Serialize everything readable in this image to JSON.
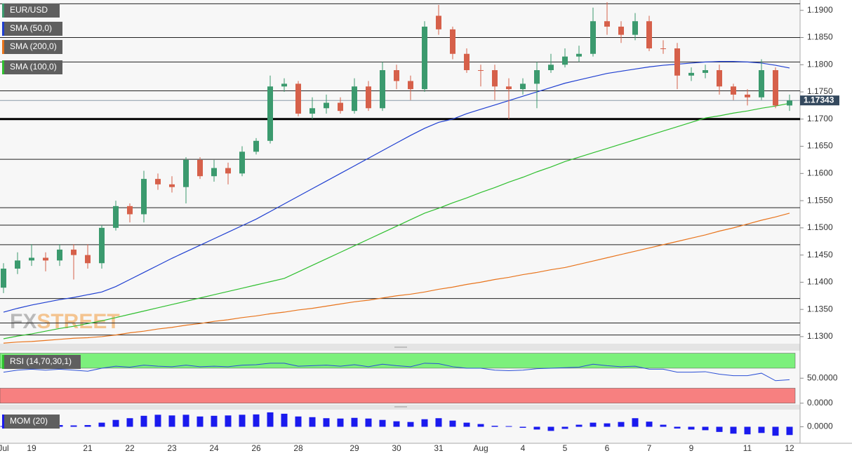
{
  "chart_data": [
    {
      "type": "candlestick",
      "title": "EUR/USD",
      "categories": [
        "Jul",
        null,
        "19",
        null,
        null,
        null,
        "21",
        null,
        null,
        "22",
        null,
        null,
        "23",
        null,
        null,
        "24",
        null,
        null,
        "26",
        null,
        null,
        "28",
        null,
        null,
        null,
        "29",
        null,
        null,
        "30",
        null,
        null,
        "31",
        null,
        null,
        "Aug",
        null,
        null,
        "4",
        null,
        null,
        "5",
        null,
        null,
        "6",
        null,
        null,
        "7",
        null,
        null,
        "9",
        null,
        null,
        null,
        "11",
        null,
        null,
        "12"
      ],
      "open": [
        1.139,
        1.1425,
        1.144,
        1.1445,
        1.144,
        1.146,
        1.145,
        1.1435,
        1.15,
        1.154,
        1.1525,
        1.159,
        1.158,
        1.1575,
        1.1625,
        1.1595,
        1.161,
        1.16,
        1.164,
        1.166,
        1.176,
        1.1765,
        1.171,
        1.172,
        1.173,
        1.1715,
        1.176,
        1.172,
        1.179,
        1.177,
        1.1755,
        1.189,
        1.1865,
        1.182,
        1.179,
        1.179,
        1.176,
        1.1755,
        1.1765,
        1.179,
        1.18,
        1.1815,
        1.182,
        1.188,
        1.187,
        1.1855,
        1.188,
        1.183,
        1.183,
        1.178,
        1.1785,
        1.179,
        1.176,
        1.1745,
        1.174,
        1.179,
        1.1725
      ],
      "high": [
        1.1435,
        1.1455,
        1.147,
        1.1455,
        1.147,
        1.147,
        1.147,
        1.1505,
        1.155,
        1.1545,
        1.1605,
        1.16,
        1.1595,
        1.163,
        1.163,
        1.1625,
        1.162,
        1.165,
        1.1665,
        1.178,
        1.1775,
        1.177,
        1.174,
        1.1745,
        1.174,
        1.1775,
        1.177,
        1.1805,
        1.18,
        1.178,
        1.188,
        1.191,
        1.187,
        1.183,
        1.18,
        1.18,
        1.1775,
        1.1775,
        1.1805,
        1.182,
        1.183,
        1.1835,
        1.1905,
        1.1915,
        1.188,
        1.1895,
        1.189,
        1.1845,
        1.184,
        1.1795,
        1.18,
        1.18,
        1.1765,
        1.1755,
        1.181,
        1.1795,
        1.1745
      ],
      "low": [
        1.138,
        1.1415,
        1.143,
        1.142,
        1.143,
        1.1405,
        1.1425,
        1.1425,
        1.1495,
        1.151,
        1.151,
        1.157,
        1.1565,
        1.1545,
        1.159,
        1.1585,
        1.158,
        1.1595,
        1.1635,
        1.1655,
        1.175,
        1.1705,
        1.17,
        1.171,
        1.171,
        1.171,
        1.1715,
        1.1715,
        1.1755,
        1.1735,
        1.175,
        1.1855,
        1.181,
        1.1785,
        1.176,
        1.1735,
        1.17,
        1.1745,
        1.172,
        1.1785,
        1.1795,
        1.1805,
        1.1815,
        1.1855,
        1.184,
        1.1845,
        1.1825,
        1.182,
        1.1755,
        1.177,
        1.1775,
        1.1745,
        1.1735,
        1.1725,
        1.1735,
        1.172,
        1.1715
      ],
      "close": [
        1.1425,
        1.144,
        1.1445,
        1.144,
        1.146,
        1.145,
        1.1435,
        1.15,
        1.154,
        1.1525,
        1.159,
        1.158,
        1.1575,
        1.1625,
        1.1595,
        1.161,
        1.16,
        1.164,
        1.166,
        1.176,
        1.1765,
        1.171,
        1.172,
        1.173,
        1.1715,
        1.176,
        1.172,
        1.179,
        1.177,
        1.1755,
        1.187,
        1.1865,
        1.182,
        1.179,
        1.179,
        1.176,
        1.1755,
        1.1765,
        1.179,
        1.18,
        1.1815,
        1.182,
        1.188,
        1.187,
        1.1855,
        1.188,
        1.183,
        1.183,
        1.178,
        1.1785,
        1.179,
        1.176,
        1.1745,
        1.174,
        1.179,
        1.1725,
        1.17343
      ],
      "up_color": "#3b9a6e",
      "down_color": "#d6604a",
      "series": [
        {
          "name": "SMA (50,0)",
          "color": "#1f3fd1",
          "values": [
            1.1345,
            1.1352,
            1.1358,
            1.1363,
            1.1368,
            1.1372,
            1.1377,
            1.1382,
            1.1392,
            1.1405,
            1.1418,
            1.1431,
            1.1444,
            1.1456,
            1.1468,
            1.148,
            1.1492,
            1.1504,
            1.1516,
            1.153,
            1.1544,
            1.1558,
            1.1572,
            1.1586,
            1.16,
            1.1614,
            1.1628,
            1.1642,
            1.1656,
            1.167,
            1.1683,
            1.1694,
            1.17,
            1.171,
            1.1718,
            1.1726,
            1.1734,
            1.1742,
            1.175,
            1.1758,
            1.1766,
            1.1772,
            1.1778,
            1.1784,
            1.1788,
            1.1792,
            1.1796,
            1.1799,
            1.1801,
            1.1803,
            1.1805,
            1.1806,
            1.1806,
            1.1805,
            1.1803,
            1.1799,
            1.1794
          ]
        },
        {
          "name": "SMA (200,0)",
          "color": "#e8741c",
          "values": [
            1.1288,
            1.129,
            1.1291,
            1.1293,
            1.1295,
            1.1297,
            1.1298,
            1.13,
            1.1303,
            1.1307,
            1.131,
            1.1314,
            1.1317,
            1.1321,
            1.1324,
            1.1328,
            1.1331,
            1.1335,
            1.1338,
            1.1342,
            1.1345,
            1.1349,
            1.1352,
            1.1356,
            1.136,
            1.1364,
            1.1367,
            1.1371,
            1.1375,
            1.1378,
            1.1382,
            1.1387,
            1.1391,
            1.1396,
            1.14,
            1.1405,
            1.1409,
            1.1414,
            1.1418,
            1.1423,
            1.1427,
            1.1433,
            1.1439,
            1.1445,
            1.1451,
            1.1457,
            1.1463,
            1.1469,
            1.1475,
            1.1481,
            1.1487,
            1.1494,
            1.15,
            1.1507,
            1.1514,
            1.152,
            1.1527
          ]
        },
        {
          "name": "SMA (100,0)",
          "color": "#2fbf2f",
          "values": [
            1.1296,
            1.1301,
            1.1305,
            1.131,
            1.1315,
            1.1319,
            1.1324,
            1.1329,
            1.1335,
            1.1341,
            1.1347,
            1.1353,
            1.1359,
            1.1365,
            1.1371,
            1.1377,
            1.1383,
            1.1389,
            1.1395,
            1.1401,
            1.1407,
            1.1419,
            1.1431,
            1.1443,
            1.1455,
            1.1467,
            1.1479,
            1.1491,
            1.1503,
            1.1515,
            1.1527,
            1.1536,
            1.1546,
            1.1555,
            1.1565,
            1.1574,
            1.1584,
            1.1593,
            1.1603,
            1.1612,
            1.1622,
            1.163,
            1.1638,
            1.1646,
            1.1654,
            1.1662,
            1.167,
            1.1678,
            1.1686,
            1.1694,
            1.1702,
            1.1706,
            1.1711,
            1.1715,
            1.172,
            1.1724,
            1.1729
          ]
        }
      ],
      "ylim": [
        1.1287,
        1.1919
      ],
      "yticks": [
        {
          "value": 1.13,
          "label": "1.1300"
        },
        {
          "value": 1.135,
          "label": "1.1350"
        },
        {
          "value": 1.14,
          "label": "1.1400"
        },
        {
          "value": 1.145,
          "label": "1.1450"
        },
        {
          "value": 1.15,
          "label": "1.1500"
        },
        {
          "value": 1.155,
          "label": "1.1550"
        },
        {
          "value": 1.16,
          "label": "1.1600"
        },
        {
          "value": 1.165,
          "label": "1.1650"
        },
        {
          "value": 1.17,
          "label": "1.1700"
        },
        {
          "value": 1.175,
          "label": "1.1750"
        },
        {
          "value": 1.18,
          "label": "1.1800"
        },
        {
          "value": 1.185,
          "label": "1.1850"
        },
        {
          "value": 1.19,
          "label": "1.1900"
        }
      ],
      "levels": [
        1.1912,
        1.185,
        1.1805,
        1.1752,
        1.1626,
        1.1537,
        1.1505,
        1.1469,
        1.137,
        1.1325,
        1.1303
      ],
      "key_level": 1.17,
      "last_price": 1.17343,
      "watermark": [
        "FX",
        "STREET"
      ]
    },
    {
      "type": "line",
      "title": "RSI (14,70,30,1)",
      "color": "#2b4fd6",
      "values": [
        62,
        66,
        68,
        66,
        68,
        66,
        64,
        70,
        74,
        72,
        76,
        74,
        73,
        76,
        73,
        74,
        73,
        76,
        77,
        80,
        80,
        74,
        75,
        76,
        74,
        77,
        73,
        78,
        75,
        73,
        80,
        79,
        73,
        70,
        70,
        66,
        65,
        66,
        69,
        70,
        71,
        72,
        78,
        75,
        73,
        74,
        68,
        68,
        62,
        62,
        63,
        58,
        55,
        55,
        60,
        45,
        47
      ],
      "ylim": [
        -3,
        105
      ],
      "bands": [
        {
          "range": [
            70,
            100
          ],
          "color": "#7cf07c"
        },
        {
          "range": [
            0,
            30
          ],
          "color": "#f78080"
        }
      ],
      "yticks": [
        {
          "value": 50,
          "label": "50.0000"
        },
        {
          "value": 0,
          "label": "0.0000"
        }
      ]
    },
    {
      "type": "bar",
      "title": "MOM (20)",
      "color": "#1a1aee",
      "values": [
        0.0002,
        0.0003,
        0.0004,
        0.0006,
        0.0005,
        0.0004,
        0.0005,
        0.0012,
        0.002,
        0.0025,
        0.0032,
        0.0035,
        0.0033,
        0.0035,
        0.003,
        0.0032,
        0.0033,
        0.0035,
        0.0036,
        0.0042,
        0.0038,
        0.003,
        0.0028,
        0.0025,
        0.0024,
        0.0026,
        0.0024,
        0.002,
        0.0016,
        0.0014,
        0.0022,
        0.0025,
        0.0018,
        0.0012,
        0.0008,
        0.0003,
        0.0002,
        -0.0003,
        -0.0008,
        -0.0012,
        -0.0006,
        0.0006,
        0.0012,
        0.001,
        0.0014,
        0.0025,
        0.0015,
        0.0006,
        -0.0005,
        -0.0008,
        -0.001,
        -0.0015,
        -0.002,
        -0.0022,
        -0.0018,
        -0.0026,
        -0.0024
      ],
      "ylim": [
        -0.0048,
        0.005
      ],
      "yticks": [
        {
          "value": 0,
          "label": "0.0000"
        }
      ]
    }
  ]
}
